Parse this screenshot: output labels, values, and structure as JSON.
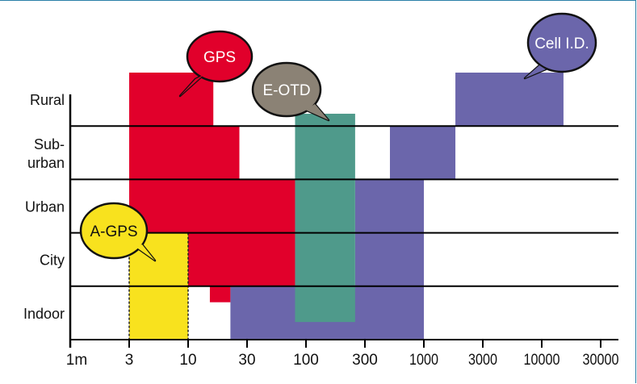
{
  "chart_data": {
    "type": "range-bar",
    "x_scale": "log",
    "x_ticks": [
      "1m",
      "3",
      "10",
      "30",
      "100",
      "300",
      "1000",
      "3000",
      "10000",
      "30000"
    ],
    "x_tick_values": [
      1,
      3,
      10,
      30,
      100,
      300,
      1000,
      3000,
      10000,
      30000
    ],
    "rows": [
      "Indoor",
      "City",
      "Urban",
      "Sub-urban",
      "Rural"
    ],
    "row_labels": [
      [
        "Indoor"
      ],
      [
        "City"
      ],
      [
        "Urban"
      ],
      [
        "Sub-",
        "urban"
      ],
      [
        "Rural"
      ]
    ],
    "colors": {
      "GPS": "#e1002b",
      "A-GPS": "#f8e21e",
      "E-OTD": "#4f9a8b",
      "Cell I.D.": "#6b66ab",
      "E-OTD-bubble": "#8b8275"
    },
    "series": [
      {
        "name": "Cell I.D.",
        "bars": [
          {
            "x": [
              1800,
              15000
            ],
            "rows": [
              4,
              5
            ]
          },
          {
            "x": [
              500,
              1800
            ],
            "rows": [
              3,
              4
            ]
          },
          {
            "x": [
              250,
              1000
            ],
            "rows": [
              1,
              3
            ]
          },
          {
            "x": [
              22,
              1000
            ],
            "rows": [
              0,
              1
            ]
          }
        ]
      },
      {
        "name": "GPS",
        "bars": [
          {
            "x": [
              3,
              16
            ],
            "rows": [
              4,
              5
            ]
          },
          {
            "x": [
              3,
              26
            ],
            "rows": [
              3,
              4
            ]
          },
          {
            "x": [
              3,
              80
            ],
            "rows": [
              2,
              3
            ]
          },
          {
            "x": [
              10,
              80
            ],
            "rows": [
              1,
              2
            ]
          },
          {
            "x": [
              15,
              22
            ],
            "rows": [
              0.7,
              1
            ]
          }
        ]
      },
      {
        "name": "E-OTD",
        "bars": [
          {
            "x": [
              80,
              250
            ],
            "rows": [
              0.33,
              4.23
            ]
          }
        ]
      },
      {
        "name": "A-GPS",
        "bars": [
          {
            "x": [
              3,
              10
            ],
            "rows": [
              0,
              2
            ]
          }
        ]
      }
    ],
    "callouts": [
      {
        "label": "GPS",
        "series": "GPS"
      },
      {
        "label": "E-OTD",
        "series": "E-OTD"
      },
      {
        "label": "Cell I.D.",
        "series": "Cell I.D."
      },
      {
        "label": "A-GPS",
        "series": "A-GPS"
      }
    ]
  }
}
